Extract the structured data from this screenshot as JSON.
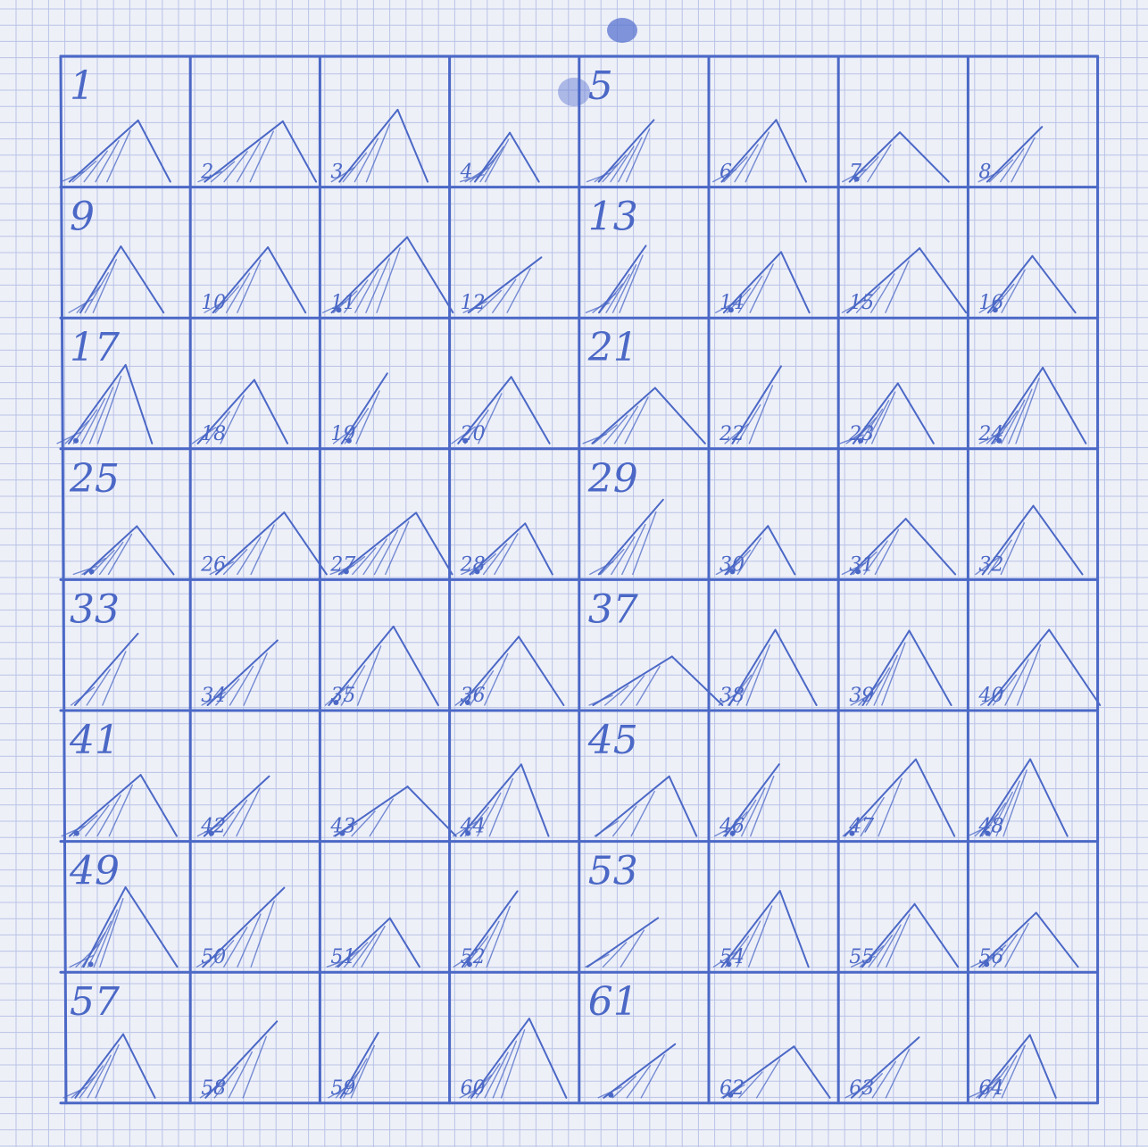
{
  "sheet": {
    "ink_color": "#4b68c6",
    "paper_color": "#eef0f8",
    "fine_grid_color": "#b9c3e6",
    "smudge_color": "#5a74d0"
  },
  "cell_labels": [
    "1",
    "2",
    "3",
    "4",
    "5",
    "6",
    "7",
    "8",
    "9",
    "10",
    "11",
    "12",
    "13",
    "14",
    "15",
    "16",
    "17",
    "18",
    "19",
    "20",
    "21",
    "22",
    "23",
    "24",
    "25",
    "26",
    "27",
    "28",
    "29",
    "30",
    "31",
    "32",
    "33",
    "34",
    "35",
    "36",
    "37",
    "38",
    "39",
    "40",
    "41",
    "42",
    "43",
    "44",
    "45",
    "46",
    "47",
    "48",
    "49",
    "50",
    "51",
    "52",
    "53",
    "54",
    "55",
    "56",
    "57",
    "58",
    "59",
    "60",
    "61",
    "62",
    "63",
    "64"
  ]
}
